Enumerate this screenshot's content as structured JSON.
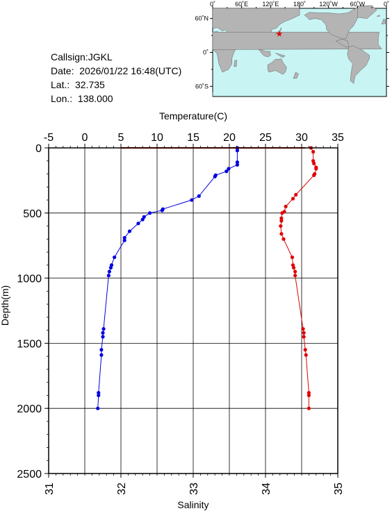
{
  "info": {
    "callsign": "Callsign:JGKL",
    "date": "Date:  2026/01/22 16:48(UTC)",
    "lat": "Lat.:  32.735",
    "lon": "Lon.:  138.000"
  },
  "map": {
    "lon_labels": [
      "0˚",
      "60˚E",
      "120˚E",
      "180˚",
      "120˚W",
      "60˚W",
      "0˚"
    ],
    "lat_labels": [
      "60˚N",
      "0˚",
      "60˚S"
    ],
    "station": {
      "lat": 32.735,
      "lon": 138.0
    },
    "colors": {
      "ocean": "#c8f4f4",
      "land": "#b4b4b4",
      "marker": "#e00000"
    }
  },
  "chart_data": {
    "type": "line",
    "top_axis": {
      "label": "Temperature(C)",
      "range": [
        -5,
        35
      ],
      "ticks": [
        "-5",
        "0",
        "5",
        "10",
        "15",
        "20",
        "25",
        "30",
        "35"
      ]
    },
    "bottom_axis": {
      "label": "Salinity",
      "range": [
        31,
        35
      ],
      "ticks": [
        "31",
        "32",
        "33",
        "34",
        "35"
      ]
    },
    "y_axis": {
      "label": "Depth(m)",
      "range": [
        0,
        2500
      ],
      "inverted": true,
      "ticks": [
        "0",
        "500",
        "1000",
        "1500",
        "2000",
        "2500"
      ]
    },
    "grid": true,
    "series": [
      {
        "axis": "top",
        "color": "#0000e0",
        "points": [
          [
            21.1,
            0
          ],
          [
            21.1,
            20
          ],
          [
            21.1,
            110
          ],
          [
            21.1,
            130
          ],
          [
            19.9,
            160
          ],
          [
            19.6,
            180
          ],
          [
            18.1,
            210
          ],
          [
            18.0,
            220
          ],
          [
            15.8,
            370
          ],
          [
            14.8,
            400
          ],
          [
            10.8,
            470
          ],
          [
            10.7,
            480
          ],
          [
            9.0,
            500
          ],
          [
            8.2,
            530
          ],
          [
            8.0,
            550
          ],
          [
            7.4,
            580
          ],
          [
            6.2,
            640
          ],
          [
            5.5,
            690
          ],
          [
            5.5,
            710
          ],
          [
            4.1,
            840
          ],
          [
            3.7,
            900
          ],
          [
            3.6,
            920
          ],
          [
            3.4,
            950
          ],
          [
            3.3,
            980
          ],
          [
            2.6,
            1390
          ],
          [
            2.5,
            1420
          ],
          [
            2.5,
            1450
          ],
          [
            2.3,
            1550
          ],
          [
            2.3,
            1590
          ],
          [
            1.9,
            1880
          ],
          [
            1.9,
            1900
          ],
          [
            1.8,
            2000
          ]
        ]
      },
      {
        "axis": "bottom",
        "color": "#e00000",
        "points": [
          [
            34.63,
            0
          ],
          [
            34.66,
            30
          ],
          [
            34.66,
            100
          ],
          [
            34.67,
            120
          ],
          [
            34.7,
            150
          ],
          [
            34.7,
            160
          ],
          [
            34.68,
            200
          ],
          [
            34.67,
            210
          ],
          [
            34.42,
            360
          ],
          [
            34.38,
            390
          ],
          [
            34.28,
            450
          ],
          [
            34.26,
            490
          ],
          [
            34.23,
            500
          ],
          [
            34.22,
            540
          ],
          [
            34.22,
            560
          ],
          [
            34.21,
            600
          ],
          [
            34.22,
            660
          ],
          [
            34.25,
            700
          ],
          [
            34.37,
            840
          ],
          [
            34.38,
            900
          ],
          [
            34.39,
            920
          ],
          [
            34.41,
            950
          ],
          [
            34.41,
            980
          ],
          [
            34.52,
            1390
          ],
          [
            34.53,
            1420
          ],
          [
            34.53,
            1450
          ],
          [
            34.55,
            1550
          ],
          [
            34.56,
            1590
          ],
          [
            34.6,
            1880
          ],
          [
            34.6,
            1900
          ],
          [
            34.6,
            2000
          ]
        ]
      }
    ]
  }
}
